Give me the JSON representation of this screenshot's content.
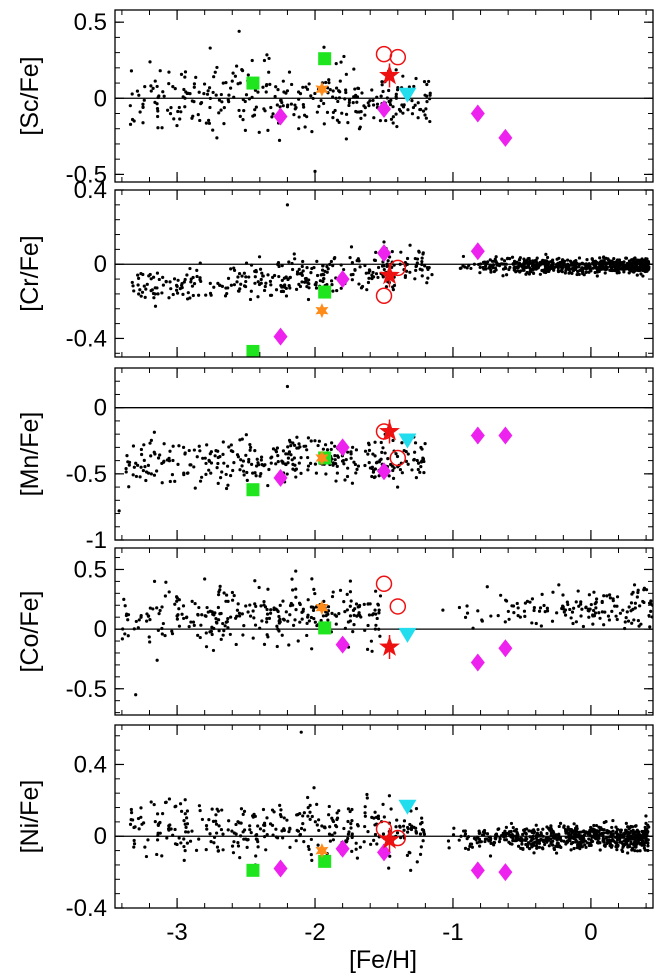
{
  "chart_data": {
    "type": "scatter",
    "xlabel": "[Fe/H]",
    "xlim": [
      -3.45,
      0.45
    ],
    "xticks": [
      -3,
      -2,
      -1,
      0
    ],
    "xtick_labels": [
      "-3",
      "-2",
      "-1",
      "0"
    ],
    "panels": [
      {
        "id": "sc",
        "ylabel": "[Sc/Fe]",
        "ylim": [
          -0.55,
          0.58
        ],
        "yticks": [
          0.5,
          0,
          -0.5
        ],
        "ytick_labels": [
          "0.5",
          "0",
          "-0.5"
        ],
        "reference_line": 0,
        "background": {
          "seed": 11,
          "count": 330,
          "xmin": -3.35,
          "xmax": -1.15,
          "trend_a": 0.0,
          "trend_b": 0.0,
          "scatter": 0.11
        },
        "outliers": [
          {
            "x": -2.0,
            "y": -0.48
          },
          {
            "x": -2.55,
            "y": 0.44
          },
          {
            "x": -2.76,
            "y": 0.33
          }
        ],
        "highlighted": [
          {
            "name": "green-square",
            "marker": "square",
            "color": "#1ee51e",
            "points": [
              [
                -2.45,
                0.1
              ],
              [
                -1.93,
                0.26
              ]
            ]
          },
          {
            "name": "orange-star",
            "marker": "star6",
            "color": "#ff8c1a",
            "points": [
              [
                -1.95,
                0.06
              ]
            ]
          },
          {
            "name": "magenta-diamond",
            "marker": "diamond",
            "color": "#ee22ee",
            "points": [
              [
                -2.25,
                -0.12
              ],
              [
                -1.5,
                -0.07
              ],
              [
                -0.82,
                -0.1
              ],
              [
                -0.62,
                -0.26
              ]
            ]
          },
          {
            "name": "cyan-triangle",
            "marker": "triangle-down",
            "color": "#22ddee",
            "points": [
              [
                -1.33,
                0.03
              ]
            ]
          },
          {
            "name": "red-open-circle",
            "marker": "circle-open",
            "color": "#ee1111",
            "points": [
              [
                -1.5,
                0.29
              ],
              [
                -1.4,
                0.27
              ]
            ]
          },
          {
            "name": "red-star",
            "marker": "star5",
            "color": "#ee1111",
            "points": [
              [
                -1.46,
                0.15
              ]
            ]
          }
        ]
      },
      {
        "id": "cr",
        "ylabel": "[Cr/Fe]",
        "ylim": [
          -0.5,
          0.4
        ],
        "yticks": [
          0.4,
          0,
          -0.4
        ],
        "ytick_labels": [
          "0.4",
          "0",
          "-0.4"
        ],
        "reference_line": 0,
        "background": {
          "seed": 23,
          "count": 330,
          "xmin": -3.35,
          "xmax": -1.15,
          "trend_a": -0.13,
          "trend_b": 0.12,
          "scatter": 0.05,
          "disk": {
            "count": 620,
            "xmin": -1.0,
            "xmax": 0.42,
            "mean": -0.01,
            "scatter": 0.02
          }
        },
        "outliers": [
          {
            "x": -2.2,
            "y": 0.32
          },
          {
            "x": -1.5,
            "y": 0.12
          }
        ],
        "highlighted": [
          {
            "name": "green-square",
            "marker": "square",
            "color": "#1ee51e",
            "points": [
              [
                -2.45,
                -0.47
              ],
              [
                -1.93,
                -0.15
              ]
            ]
          },
          {
            "name": "orange-star",
            "marker": "star6",
            "color": "#ff8c1a",
            "points": [
              [
                -1.95,
                -0.25
              ]
            ]
          },
          {
            "name": "magenta-diamond",
            "marker": "diamond",
            "color": "#ee22ee",
            "points": [
              [
                -2.25,
                -0.39
              ],
              [
                -1.8,
                -0.08
              ],
              [
                -1.5,
                0.06
              ],
              [
                -0.82,
                0.07
              ]
            ]
          },
          {
            "name": "red-open-circle",
            "marker": "circle-open",
            "color": "#ee1111",
            "points": [
              [
                -1.5,
                -0.17
              ],
              [
                -1.4,
                -0.02
              ]
            ]
          },
          {
            "name": "red-star",
            "marker": "star5",
            "color": "#ee1111",
            "points": [
              [
                -1.46,
                -0.06
              ]
            ]
          }
        ]
      },
      {
        "id": "mn",
        "ylabel": "[Mn/Fe]",
        "ylim": [
          -1.0,
          0.3
        ],
        "yticks": [
          0,
          -0.5,
          -1
        ],
        "ytick_labels": [
          "0",
          "-0.5",
          "-1"
        ],
        "reference_line": 0,
        "background": {
          "seed": 37,
          "count": 340,
          "xmin": -3.4,
          "xmax": -1.2,
          "trend_a": -0.4,
          "trend_b": 0.0,
          "scatter": 0.09
        },
        "outliers": [
          {
            "x": -2.2,
            "y": 0.16
          },
          {
            "x": -3.42,
            "y": -0.78
          }
        ],
        "highlighted": [
          {
            "name": "green-square",
            "marker": "square",
            "color": "#1ee51e",
            "points": [
              [
                -2.45,
                -0.62
              ],
              [
                -1.93,
                -0.38
              ]
            ]
          },
          {
            "name": "orange-star",
            "marker": "star6",
            "color": "#ff8c1a",
            "points": [
              [
                -1.95,
                -0.38
              ]
            ]
          },
          {
            "name": "magenta-diamond",
            "marker": "diamond",
            "color": "#ee22ee",
            "points": [
              [
                -2.25,
                -0.53
              ],
              [
                -1.8,
                -0.3
              ],
              [
                -1.5,
                -0.48
              ],
              [
                -0.82,
                -0.21
              ],
              [
                -0.62,
                -0.21
              ]
            ]
          },
          {
            "name": "cyan-triangle",
            "marker": "triangle-down",
            "color": "#22ddee",
            "points": [
              [
                -1.33,
                -0.24
              ]
            ]
          },
          {
            "name": "red-open-circle",
            "marker": "circle-open",
            "color": "#ee1111",
            "points": [
              [
                -1.5,
                -0.18
              ],
              [
                -1.4,
                -0.38
              ]
            ]
          },
          {
            "name": "red-star",
            "marker": "star5",
            "color": "#ee1111",
            "points": [
              [
                -1.46,
                -0.18
              ]
            ]
          }
        ]
      },
      {
        "id": "co",
        "ylabel": "[Co/Fe]",
        "ylim": [
          -0.72,
          0.68
        ],
        "yticks": [
          0.5,
          0,
          -0.5
        ],
        "ytick_labels": [
          "0.5",
          "0",
          "-0.5"
        ],
        "reference_line": 0,
        "background": {
          "seed": 41,
          "count": 300,
          "xmin": -3.4,
          "xmax": -1.5,
          "trend_a": 0.07,
          "trend_b": 0.08,
          "scatter": 0.13,
          "disk": {
            "count": 150,
            "xmin": -1.1,
            "xmax": 0.45,
            "mean": 0.18,
            "scatter": 0.08
          }
        },
        "outliers": [
          {
            "x": -3.3,
            "y": -0.55
          },
          {
            "x": -2.8,
            "y": 0.42
          }
        ],
        "highlighted": [
          {
            "name": "green-square",
            "marker": "square",
            "color": "#1ee51e",
            "points": [
              [
                -1.93,
                0.01
              ]
            ]
          },
          {
            "name": "orange-star",
            "marker": "star6",
            "color": "#ff8c1a",
            "points": [
              [
                -1.95,
                0.18
              ]
            ]
          },
          {
            "name": "magenta-diamond",
            "marker": "diamond",
            "color": "#ee22ee",
            "points": [
              [
                -1.8,
                -0.13
              ],
              [
                -0.82,
                -0.28
              ],
              [
                -0.62,
                -0.16
              ]
            ]
          },
          {
            "name": "cyan-triangle",
            "marker": "triangle-down",
            "color": "#22ddee",
            "points": [
              [
                -1.33,
                -0.04
              ]
            ]
          },
          {
            "name": "red-open-circle",
            "marker": "circle-open",
            "color": "#ee1111",
            "points": [
              [
                -1.5,
                0.38
              ],
              [
                -1.4,
                0.19
              ]
            ]
          },
          {
            "name": "red-star",
            "marker": "star5",
            "color": "#ee1111",
            "points": [
              [
                -1.46,
                -0.15
              ]
            ]
          }
        ]
      },
      {
        "id": "ni",
        "ylabel": "[Ni/Fe]",
        "ylim": [
          -0.4,
          0.62
        ],
        "yticks": [
          0.4,
          0,
          -0.4
        ],
        "ytick_labels": [
          "0.4",
          "0",
          "-0.4"
        ],
        "reference_line": 0,
        "background": {
          "seed": 53,
          "count": 340,
          "xmin": -3.35,
          "xmax": -1.2,
          "trend_a": 0.03,
          "trend_b": 0.02,
          "scatter": 0.08,
          "disk": {
            "count": 650,
            "xmin": -1.1,
            "xmax": 0.42,
            "mean": -0.01,
            "scatter": 0.035
          }
        },
        "outliers": [
          {
            "x": -2.1,
            "y": 0.58
          }
        ],
        "highlighted": [
          {
            "name": "green-square",
            "marker": "square",
            "color": "#1ee51e",
            "points": [
              [
                -2.45,
                -0.19
              ],
              [
                -1.93,
                -0.14
              ]
            ]
          },
          {
            "name": "orange-star",
            "marker": "star6",
            "color": "#ff8c1a",
            "points": [
              [
                -1.95,
                -0.08
              ]
            ]
          },
          {
            "name": "magenta-diamond",
            "marker": "diamond",
            "color": "#ee22ee",
            "points": [
              [
                -2.25,
                -0.18
              ],
              [
                -1.8,
                -0.07
              ],
              [
                -1.5,
                -0.09
              ],
              [
                -0.82,
                -0.19
              ],
              [
                -0.62,
                -0.2
              ]
            ]
          },
          {
            "name": "cyan-triangle",
            "marker": "triangle-down",
            "color": "#22ddee",
            "points": [
              [
                -1.33,
                0.17
              ]
            ]
          },
          {
            "name": "red-open-circle",
            "marker": "circle-open",
            "color": "#ee1111",
            "points": [
              [
                -1.5,
                0.04
              ],
              [
                -1.4,
                -0.01
              ]
            ]
          },
          {
            "name": "red-star",
            "marker": "star5",
            "color": "#ee1111",
            "points": [
              [
                -1.46,
                -0.02
              ]
            ]
          }
        ]
      }
    ]
  }
}
